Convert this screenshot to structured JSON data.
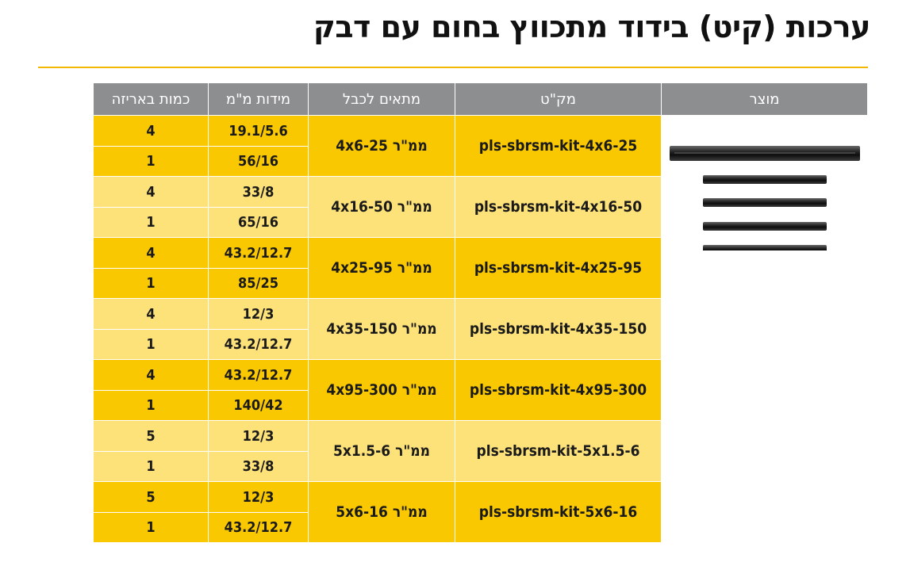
{
  "title": "ערכות (קיט) בידוד מתכווץ בחום עם דבק",
  "colors": {
    "accent": "#f9c800",
    "accent_light": "#fde27a",
    "header_bg": "#8c8e90",
    "rule": "#f2b705"
  },
  "table": {
    "headers": {
      "product": "מוצר",
      "sku": "מק\"ט",
      "fits": "מתאים לכבל",
      "dimensions": "מידות מ\"מ",
      "quantity": "כמות באריזה"
    },
    "product_image": "heat-shrink-tubes-image",
    "rows": [
      {
        "sku": "pls-sbrsm-kit-4x6-25",
        "fits": "4x6-25 ממ\"ר",
        "items": [
          {
            "dims": "19.1/5.6",
            "qty": "4"
          },
          {
            "dims": "56/16",
            "qty": "1"
          }
        ]
      },
      {
        "sku": "pls-sbrsm-kit-4x16-50",
        "fits": "4x16-50 ממ\"ר",
        "items": [
          {
            "dims": "33/8",
            "qty": "4"
          },
          {
            "dims": "65/16",
            "qty": "1"
          }
        ]
      },
      {
        "sku": "pls-sbrsm-kit-4x25-95",
        "fits": "4x25-95 ממ\"ר",
        "items": [
          {
            "dims": "43.2/12.7",
            "qty": "4"
          },
          {
            "dims": "85/25",
            "qty": "1"
          }
        ]
      },
      {
        "sku": "pls-sbrsm-kit-4x35-150",
        "fits": "4x35-150 ממ\"ר",
        "items": [
          {
            "dims": "12/3",
            "qty": "4"
          },
          {
            "dims": "43.2/12.7",
            "qty": "1"
          }
        ]
      },
      {
        "sku": "pls-sbrsm-kit-4x95-300",
        "fits": "4x95-300 ממ\"ר",
        "items": [
          {
            "dims": "43.2/12.7",
            "qty": "4"
          },
          {
            "dims": "140/42",
            "qty": "1"
          }
        ]
      },
      {
        "sku": "pls-sbrsm-kit-5x1.5-6",
        "fits": "5x1.5-6 ממ\"ר",
        "items": [
          {
            "dims": "12/3",
            "qty": "5"
          },
          {
            "dims": "33/8",
            "qty": "1"
          }
        ]
      },
      {
        "sku": "pls-sbrsm-kit-5x6-16",
        "fits": "5x6-16 ממ\"ר",
        "items": [
          {
            "dims": "12/3",
            "qty": "5"
          },
          {
            "dims": "43.2/12.7",
            "qty": "1"
          }
        ]
      }
    ]
  }
}
